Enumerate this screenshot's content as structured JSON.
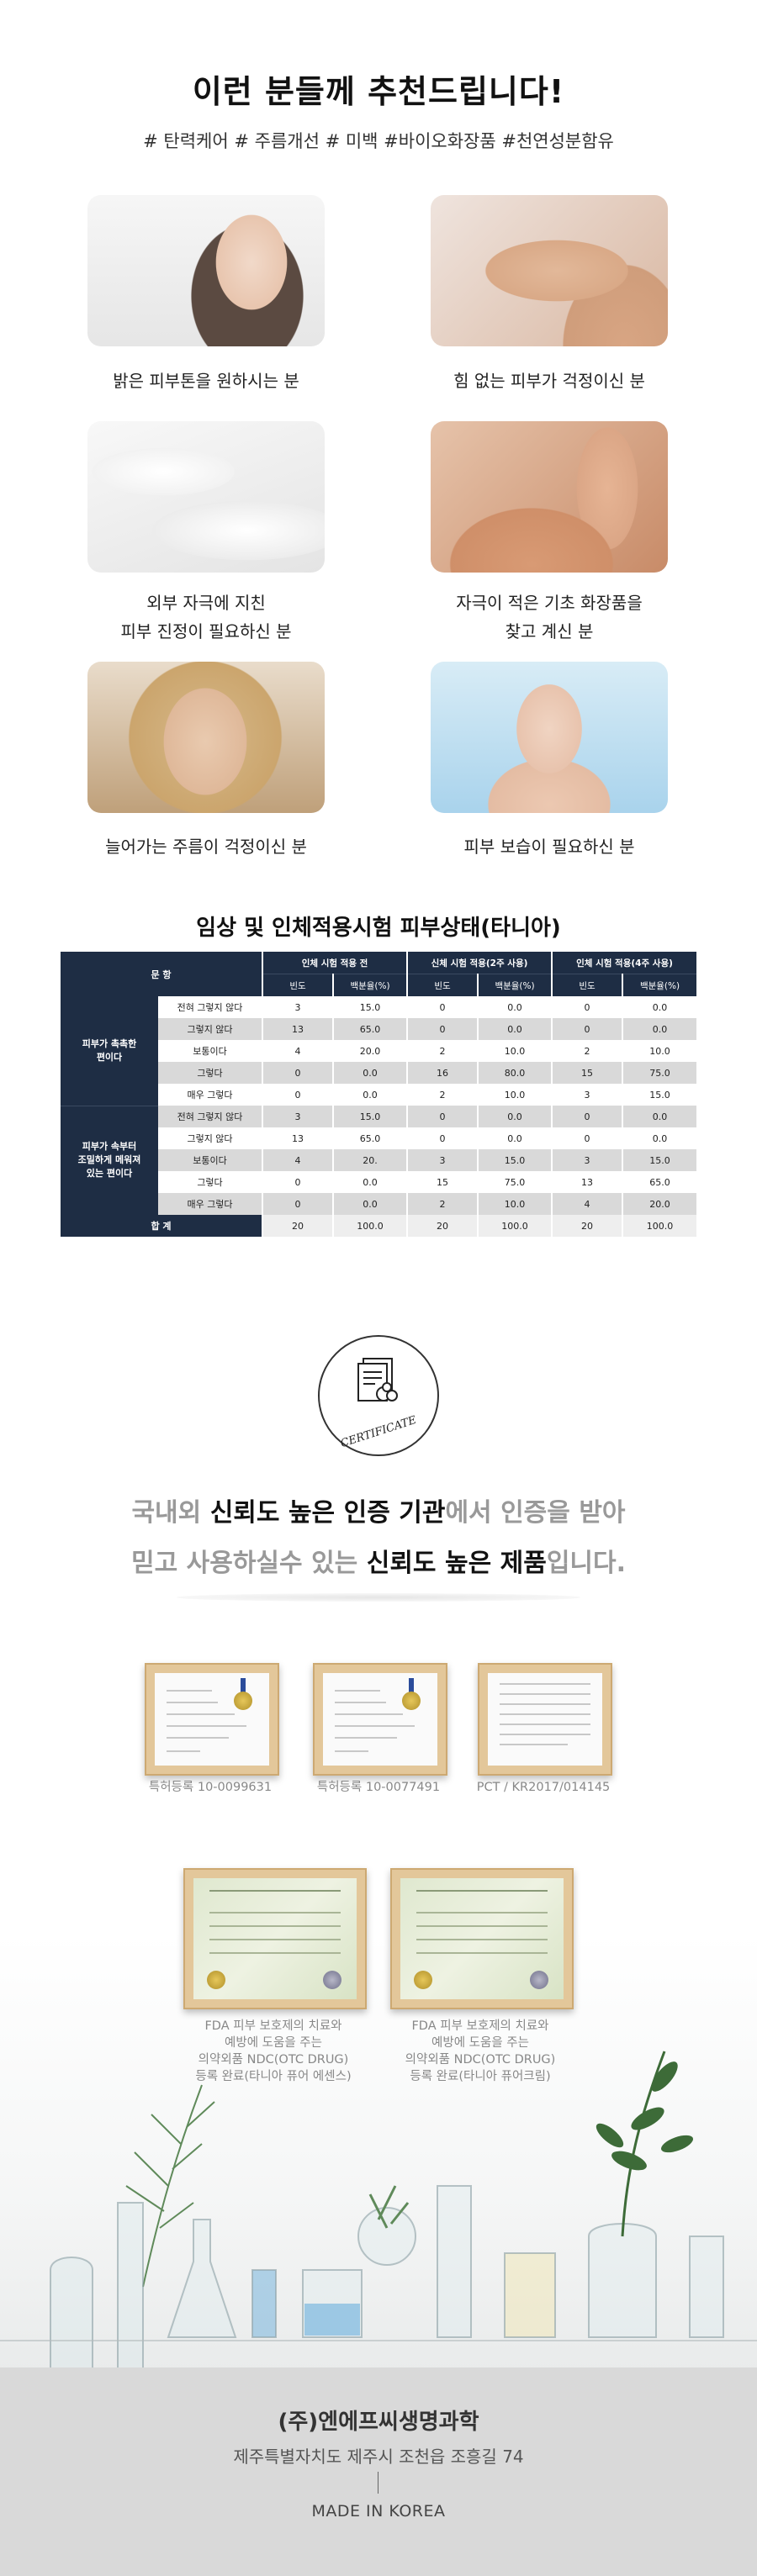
{
  "recommend": {
    "title": "이런 분들께 추천드립니다!",
    "tags": "# 탄력케어 # 주름개선  # 미백 #바이오화장품 #천연성분함유",
    "items": [
      {
        "caption1": "밝은 피부톤을 원하시는 분",
        "caption2": ""
      },
      {
        "caption1": "힘 없는 피부가 걱정이신 분",
        "caption2": ""
      },
      {
        "caption1": "외부 자극에 지친",
        "caption2": "피부 진정이 필요하신 분"
      },
      {
        "caption1": "자극이 적은 기초 화장품을",
        "caption2": "찾고 계신 분"
      },
      {
        "caption1": "늘어가는 주름이 걱정이신 분",
        "caption2": ""
      },
      {
        "caption1": "피부 보습이 필요하신 분",
        "caption2": ""
      }
    ]
  },
  "clinical": {
    "title": "임상 및 인체적용시험 피부상태(타니아)",
    "header_question": "문    항",
    "group_headers": [
      "인체 시험 적용 전",
      "신체 시험 적용(2주 사용)",
      "인체 시험 적용(4주 사용)"
    ],
    "sub_headers": [
      "빈도",
      "백분율(%)",
      "빈도",
      "백분율(%)",
      "빈도",
      "백분율(%)"
    ],
    "groups": [
      {
        "label_lines": [
          "피부가 촉촉한",
          "편이다"
        ],
        "rows": [
          {
            "label": "전혀 그렇지 않다",
            "cells": [
              "3",
              "15.0",
              "0",
              "0.0",
              "0",
              "0.0"
            ]
          },
          {
            "label": "그렇지 않다",
            "cells": [
              "13",
              "65.0",
              "0",
              "0.0",
              "0",
              "0.0"
            ]
          },
          {
            "label": "보통이다",
            "cells": [
              "4",
              "20.0",
              "2",
              "10.0",
              "2",
              "10.0"
            ]
          },
          {
            "label": "그렇다",
            "cells": [
              "0",
              "0.0",
              "16",
              "80.0",
              "15",
              "75.0"
            ]
          },
          {
            "label": "매우 그렇다",
            "cells": [
              "0",
              "0.0",
              "2",
              "10.0",
              "3",
              "15.0"
            ]
          }
        ]
      },
      {
        "label_lines": [
          "피부가 속부터",
          "조밀하게 메워져",
          "있는 편이다"
        ],
        "rows": [
          {
            "label": "전혀 그렇지 않다",
            "cells": [
              "3",
              "15.0",
              "0",
              "0.0",
              "0",
              "0.0"
            ]
          },
          {
            "label": "그렇지 않다",
            "cells": [
              "13",
              "65.0",
              "0",
              "0.0",
              "0",
              "0.0"
            ]
          },
          {
            "label": "보통이다",
            "cells": [
              "4",
              "20.",
              "3",
              "15.0",
              "3",
              "15.0"
            ]
          },
          {
            "label": "그렇다",
            "cells": [
              "0",
              "0.0",
              "15",
              "75.0",
              "13",
              "65.0"
            ]
          },
          {
            "label": "매우 그렇다",
            "cells": [
              "0",
              "0.0",
              "2",
              "10.0",
              "4",
              "20.0"
            ]
          }
        ]
      }
    ],
    "total_label": "합    계",
    "total_cells": [
      "20",
      "100.0",
      "20",
      "100.0",
      "20",
      "100.0"
    ]
  },
  "certification": {
    "badge_text": "CERTIFICATE",
    "line1": [
      {
        "text": "국내외 ",
        "strong": false
      },
      {
        "text": "신뢰도 높은 인증 기관",
        "strong": true
      },
      {
        "text": "에서 인증을 받아",
        "strong": false
      }
    ],
    "line2": [
      {
        "text": "믿고 사용하실수 있는 ",
        "strong": false
      },
      {
        "text": "신뢰도 높은 제품",
        "strong": true
      },
      {
        "text": "입니다.",
        "strong": false
      }
    ],
    "certs_row1": [
      {
        "caption": "특허등록 10-0099631"
      },
      {
        "caption": "특허등록 10-0077491"
      },
      {
        "caption": "PCT / KR2017/014145"
      }
    ],
    "certs_row2": [
      {
        "lines": [
          "FDA 피부 보호제의 치료와",
          "예방에 도움을 주는",
          "의약외품 NDC(OTC DRUG)",
          "등록 완료(타니아 퓨어 에센스)"
        ]
      },
      {
        "lines": [
          "FDA 피부 보호제의 치료와",
          "예방에 도움을 주는",
          "의약외품 NDC(OTC DRUG)",
          "등록 완료(타니아 퓨어크림)"
        ]
      }
    ]
  },
  "footer": {
    "company": "(주)엔에프씨생명과학",
    "address": "제주특별자치도 제주시 조천읍 조흥길 74",
    "made_in": "MADE IN KOREA"
  }
}
